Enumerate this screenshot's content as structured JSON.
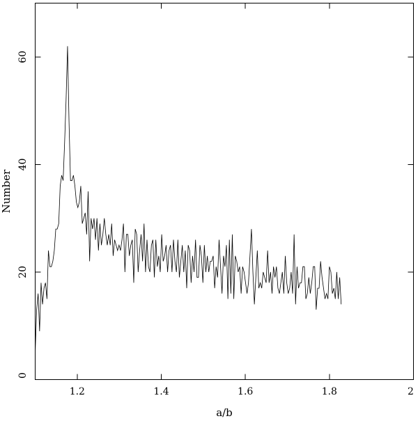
{
  "chart_data": {
    "type": "line",
    "title": "",
    "xlabel": "a/b",
    "ylabel": "Number",
    "xlim": [
      1.1,
      2.0
    ],
    "ylim": [
      0,
      70
    ],
    "grid": false,
    "x_ticks": [
      1.2,
      1.4,
      1.6,
      1.8,
      2.0
    ],
    "x_tick_labels": [
      "1.2",
      "1.4",
      "1.6",
      "1.8",
      "2"
    ],
    "y_ticks": [
      0,
      20,
      40,
      60
    ],
    "y_tick_labels": [
      "0",
      "20",
      "40",
      "60"
    ],
    "line_color": "#000000",
    "x_start": 1.1,
    "x_step": 0.0035,
    "values": [
      5,
      13,
      16,
      9,
      18,
      14,
      17,
      18,
      15,
      24,
      21,
      21,
      22,
      24,
      28,
      28,
      29,
      36,
      38,
      37,
      44,
      52,
      62,
      48,
      37,
      37,
      38,
      36,
      33,
      32,
      33,
      36,
      29,
      30,
      31,
      27,
      35,
      22,
      30,
      28,
      30,
      26,
      30,
      24,
      29,
      25,
      27,
      30,
      27,
      25,
      27,
      25,
      29,
      23,
      26,
      25,
      24,
      25,
      24,
      26,
      29,
      20,
      27,
      27,
      23,
      25,
      26,
      18,
      28,
      27,
      20,
      24,
      27,
      22,
      29,
      20,
      26,
      21,
      20,
      25,
      26,
      19,
      26,
      21,
      23,
      20,
      27,
      22,
      23,
      25,
      20,
      24,
      25,
      20,
      26,
      22,
      20,
      26,
      19,
      22,
      25,
      20,
      24,
      17,
      25,
      24,
      18,
      23,
      20,
      26,
      19,
      19,
      25,
      23,
      18,
      25,
      20,
      23,
      20,
      22,
      22,
      23,
      17,
      21,
      19,
      26,
      21,
      16,
      23,
      21,
      25,
      15,
      26,
      16,
      27,
      15,
      23,
      22,
      20,
      21,
      16,
      21,
      20,
      18,
      16,
      18,
      23,
      28,
      20,
      14,
      19,
      24,
      17,
      18,
      17,
      20,
      19,
      18,
      24,
      18,
      20,
      16,
      21,
      19,
      21,
      17,
      16,
      18,
      20,
      16,
      23,
      18,
      16,
      17,
      20,
      16,
      27,
      14,
      21,
      17,
      18,
      18,
      21,
      21,
      15,
      16,
      19,
      16,
      18,
      21,
      21,
      13,
      17,
      17,
      22,
      19,
      17,
      15,
      16,
      15,
      21,
      20,
      16,
      17,
      15,
      20,
      15,
      19,
      14
    ]
  }
}
